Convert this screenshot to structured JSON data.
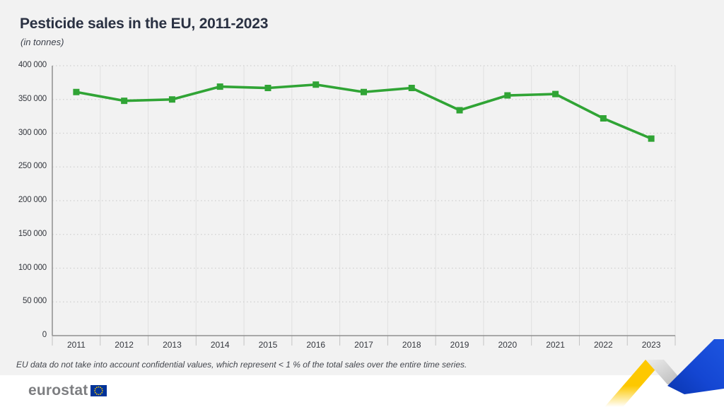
{
  "header": {
    "title": "Pesticide sales in the EU, 2011-2023",
    "subtitle": "(in tonnes)"
  },
  "footnote": {
    "text": "EU data do not take into account confidential values, which represent < 1 % of the total sales over the entire time series."
  },
  "footer": {
    "logo_text": "eurostat",
    "eu_flag_icon": "eu-flag-icon",
    "ribbon_icon": "eurostat-ribbon-icon"
  },
  "colors": {
    "background": "#f2f2f2",
    "footer_band": "#ffffff",
    "title_text": "#2a3142",
    "line_green": "#30a435",
    "axis_gray": "#8f8f8f",
    "grid_dotted": "#cfcfcf",
    "grid_solid": "#e0e0e0",
    "tick_text": "#34373e",
    "footnote_text": "#44474e",
    "logo_gray": "#7d7e81",
    "eu_flag_blue": "#003399",
    "eu_flag_star_yellow": "#ffcc00",
    "ribbon_yellow": "#fdc800",
    "ribbon_blue": "#1446d2",
    "ribbon_gray": "#c6c6c6"
  },
  "chart_data": {
    "type": "line",
    "title": "Pesticide sales in the EU, 2011-2023",
    "unit_label": "(in tonnes)",
    "categories": [
      "2011",
      "2012",
      "2013",
      "2014",
      "2015",
      "2016",
      "2017",
      "2018",
      "2019",
      "2020",
      "2021",
      "2022",
      "2023"
    ],
    "series": [
      {
        "name": "Pesticide sales, EU",
        "marker": "square",
        "color": "#30a435",
        "values": [
          361000,
          348000,
          350000,
          369000,
          367000,
          372000,
          361000,
          367000,
          334000,
          356000,
          358000,
          322000,
          292000
        ]
      }
    ],
    "ylim": [
      0,
      400000
    ],
    "ytick_step": 50000,
    "ytick_labels": [
      "0",
      "50 000",
      "100 000",
      "150 000",
      "200 000",
      "250 000",
      "300 000",
      "350 000",
      "400 000"
    ],
    "xlabel": "",
    "ylabel": "tonnes",
    "grid": {
      "horizontal": "dotted",
      "vertical": "solid"
    },
    "legend_position": "none"
  }
}
